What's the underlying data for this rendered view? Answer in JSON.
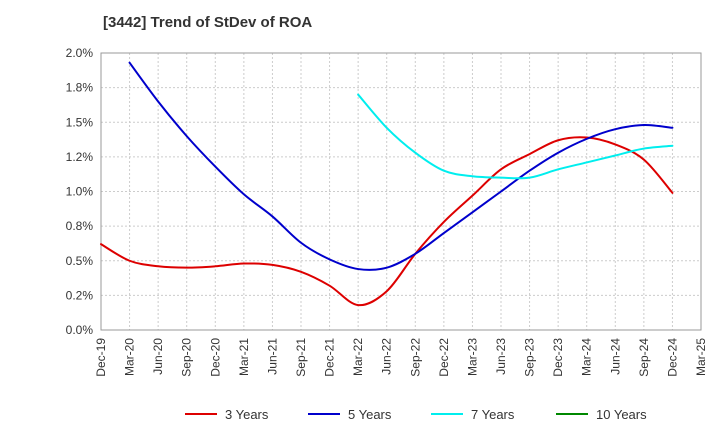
{
  "chart_data": {
    "type": "line",
    "title": "[3442]  Trend of StDev of ROA",
    "x": [
      "Dec-19",
      "Mar-20",
      "Jun-20",
      "Sep-20",
      "Dec-20",
      "Mar-21",
      "Jun-21",
      "Sep-21",
      "Dec-21",
      "Mar-22",
      "Jun-22",
      "Sep-22",
      "Dec-22",
      "Mar-23",
      "Jun-23",
      "Sep-23",
      "Dec-23",
      "Mar-24",
      "Jun-24",
      "Sep-24",
      "Dec-24",
      "Mar-25"
    ],
    "y_ticks": [
      "0.0%",
      "0.2%",
      "0.5%",
      "0.8%",
      "1.0%",
      "1.2%",
      "1.5%",
      "1.8%",
      "2.0%"
    ],
    "ylim": [
      0,
      2.0
    ],
    "grid": true,
    "legend_position": "bottom",
    "series": [
      {
        "name": "3 Years",
        "color": "#dd0000",
        "values": [
          0.62,
          0.5,
          0.46,
          0.45,
          0.46,
          0.48,
          0.47,
          0.42,
          0.32,
          0.18,
          0.28,
          0.55,
          0.78,
          0.97,
          1.16,
          1.27,
          1.37,
          1.39,
          1.34,
          1.23,
          0.99,
          null
        ]
      },
      {
        "name": "5 Years",
        "color": "#0000cc",
        "values": [
          null,
          1.93,
          1.65,
          1.4,
          1.18,
          0.98,
          0.82,
          0.63,
          0.51,
          0.44,
          0.45,
          0.55,
          0.7,
          0.85,
          1.0,
          1.15,
          1.28,
          1.38,
          1.45,
          1.48,
          1.46,
          null
        ]
      },
      {
        "name": "7 Years",
        "color": "#00eeee",
        "values": [
          null,
          null,
          null,
          null,
          null,
          null,
          null,
          null,
          null,
          1.7,
          1.46,
          1.28,
          1.15,
          1.11,
          1.1,
          1.1,
          1.16,
          1.21,
          1.26,
          1.31,
          1.33,
          null
        ]
      },
      {
        "name": "10 Years",
        "color": "#008800",
        "values": [
          null,
          null,
          null,
          null,
          null,
          null,
          null,
          null,
          null,
          null,
          null,
          null,
          null,
          null,
          null,
          null,
          null,
          null,
          null,
          null,
          null,
          null
        ]
      }
    ]
  }
}
